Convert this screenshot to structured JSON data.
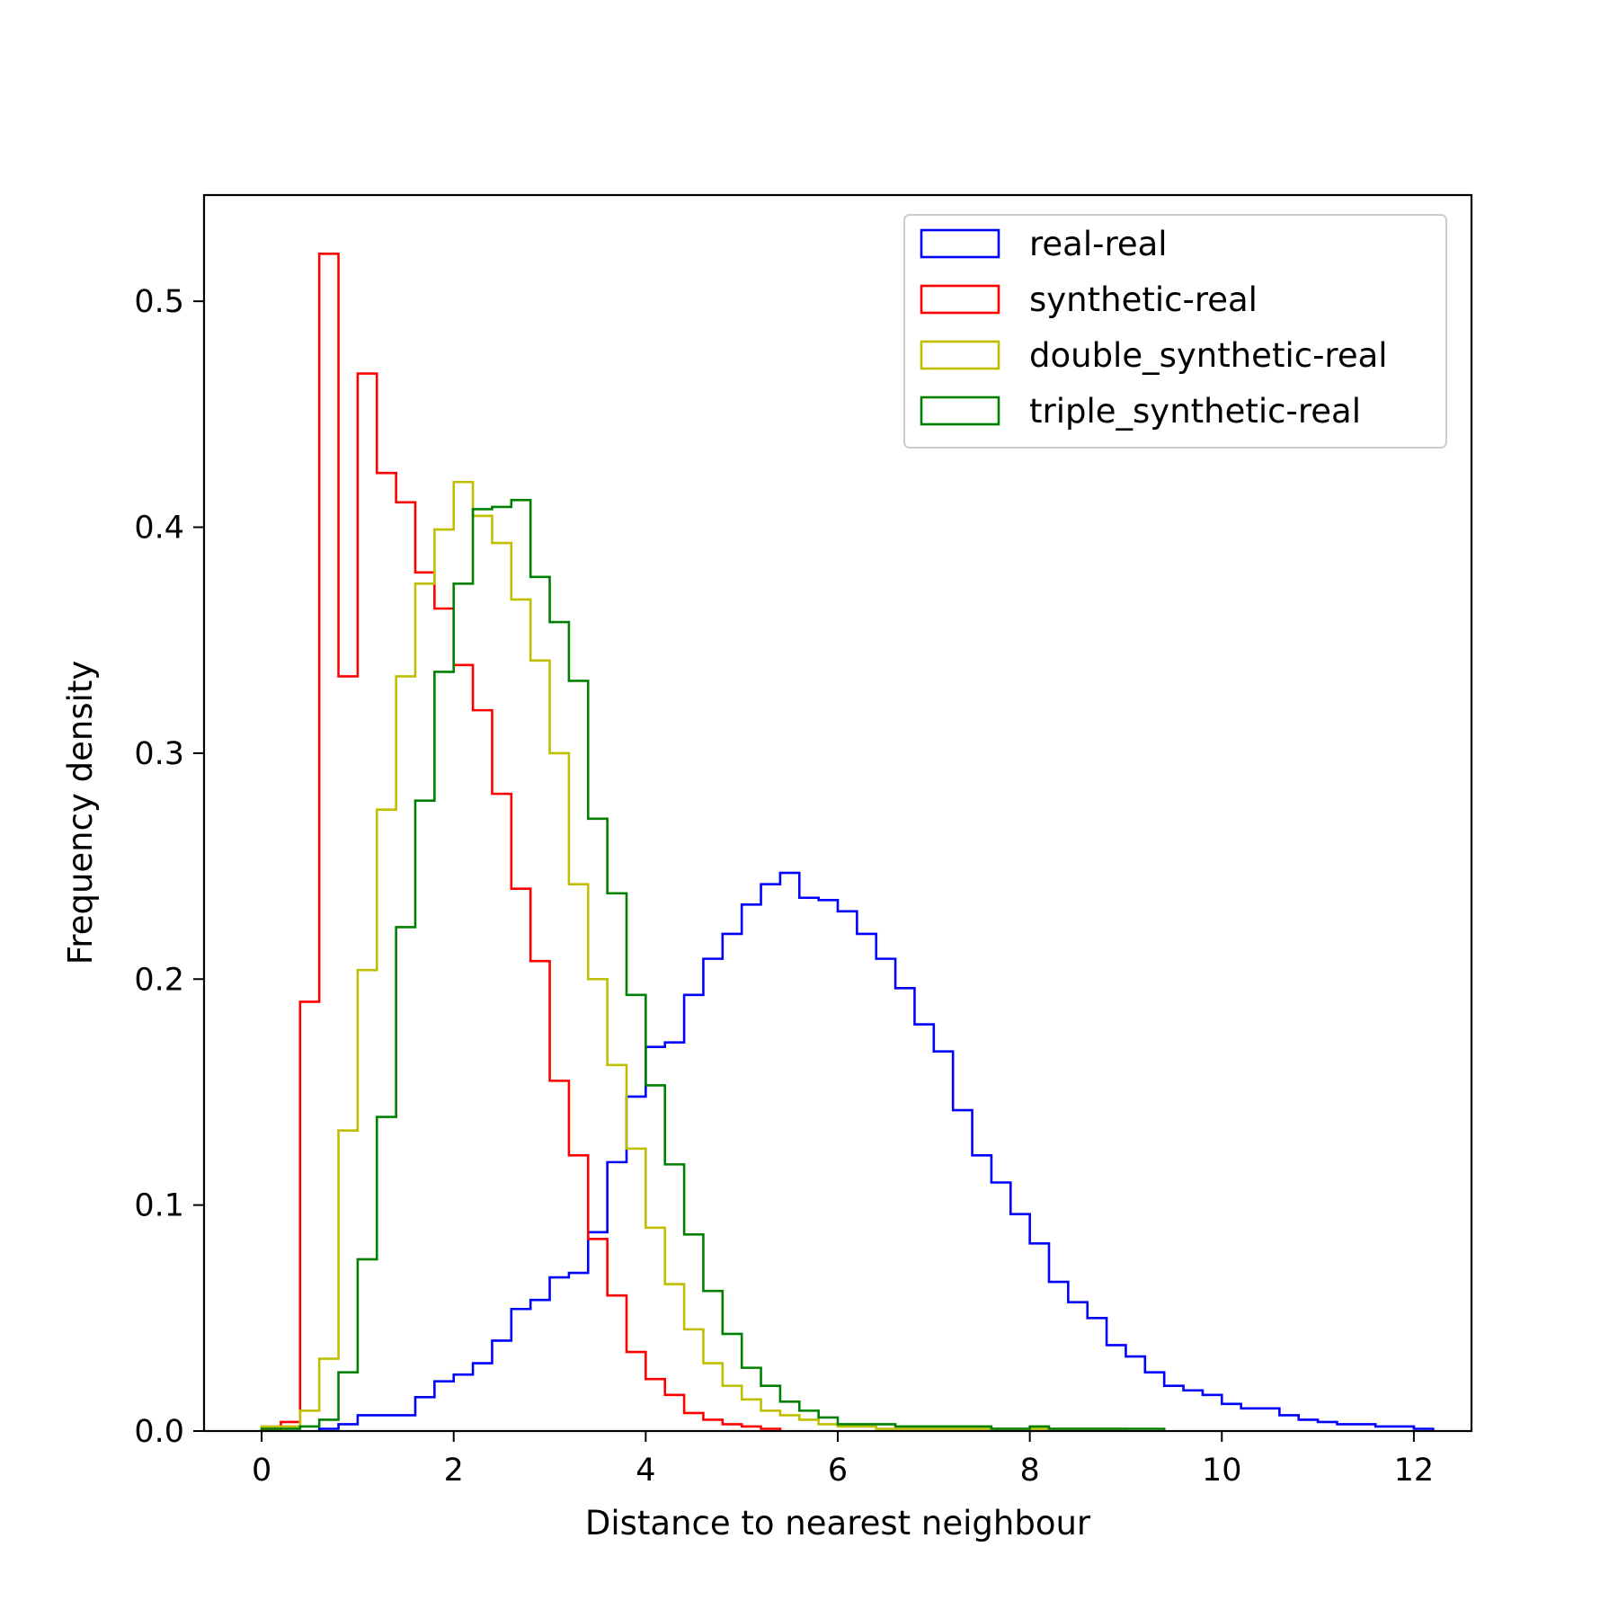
{
  "chart_data": {
    "type": "histogram",
    "xlabel": "Distance to nearest neighbour",
    "ylabel": "Frequency density",
    "xlim": [
      -0.6,
      12.6
    ],
    "ylim": [
      0,
      0.547
    ],
    "xticks": [
      0,
      2,
      4,
      6,
      8,
      10,
      12
    ],
    "xtick_labels": [
      "0",
      "2",
      "4",
      "6",
      "8",
      "10",
      "12"
    ],
    "yticks": [
      0.0,
      0.1,
      0.2,
      0.3,
      0.4,
      0.5
    ],
    "ytick_labels": [
      "0.0",
      "0.1",
      "0.2",
      "0.3",
      "0.4",
      "0.5"
    ],
    "grid": false,
    "legend_position": "top-right",
    "series": [
      {
        "name": "real-real",
        "color": "#0000ff",
        "x_start": 0.6,
        "bin_width": 0.2,
        "values": [
          0.001,
          0.003,
          0.007,
          0.007,
          0.007,
          0.015,
          0.022,
          0.025,
          0.03,
          0.04,
          0.054,
          0.058,
          0.068,
          0.07,
          0.088,
          0.119,
          0.148,
          0.17,
          0.172,
          0.193,
          0.209,
          0.22,
          0.233,
          0.242,
          0.247,
          0.236,
          0.235,
          0.23,
          0.22,
          0.209,
          0.196,
          0.18,
          0.168,
          0.142,
          0.122,
          0.11,
          0.096,
          0.083,
          0.066,
          0.057,
          0.05,
          0.038,
          0.033,
          0.026,
          0.02,
          0.018,
          0.016,
          0.012,
          0.01,
          0.01,
          0.007,
          0.005,
          0.004,
          0.003,
          0.003,
          0.002,
          0.002,
          0.001
        ]
      },
      {
        "name": "synthetic-real",
        "color": "#ff0000",
        "x_start": 0.0,
        "bin_width": 0.2,
        "values": [
          0.001,
          0.004,
          0.19,
          0.521,
          0.334,
          0.468,
          0.424,
          0.411,
          0.38,
          0.364,
          0.339,
          0.319,
          0.282,
          0.24,
          0.208,
          0.155,
          0.122,
          0.085,
          0.06,
          0.035,
          0.023,
          0.016,
          0.008,
          0.005,
          0.003,
          0.002,
          0.001
        ]
      },
      {
        "name": "double_synthetic-real",
        "color": "#bfbf00",
        "x_start": 0.0,
        "bin_width": 0.2,
        "values": [
          0.002,
          0.002,
          0.009,
          0.032,
          0.133,
          0.204,
          0.275,
          0.334,
          0.375,
          0.399,
          0.42,
          0.405,
          0.393,
          0.368,
          0.341,
          0.3,
          0.242,
          0.2,
          0.162,
          0.125,
          0.09,
          0.065,
          0.045,
          0.03,
          0.02,
          0.014,
          0.009,
          0.007,
          0.005,
          0.003,
          0.002,
          0.002,
          0.001,
          0.001,
          0.001,
          0.001,
          0.001,
          0.001,
          0.001,
          0.001,
          0.001,
          0.001,
          0.001,
          0.001,
          0.001
        ]
      },
      {
        "name": "triple_synthetic-real",
        "color": "#008000",
        "x_start": 0.0,
        "bin_width": 0.2,
        "values": [
          0.001,
          0.001,
          0.002,
          0.005,
          0.026,
          0.076,
          0.139,
          0.223,
          0.279,
          0.336,
          0.375,
          0.408,
          0.409,
          0.412,
          0.378,
          0.358,
          0.332,
          0.271,
          0.238,
          0.193,
          0.153,
          0.118,
          0.087,
          0.062,
          0.043,
          0.028,
          0.02,
          0.013,
          0.009,
          0.006,
          0.003,
          0.003,
          0.003,
          0.002,
          0.002,
          0.002,
          0.002,
          0.002,
          0.001,
          0.001,
          0.002,
          0.001,
          0.001,
          0.001,
          0.001,
          0.001,
          0.001
        ]
      }
    ]
  }
}
